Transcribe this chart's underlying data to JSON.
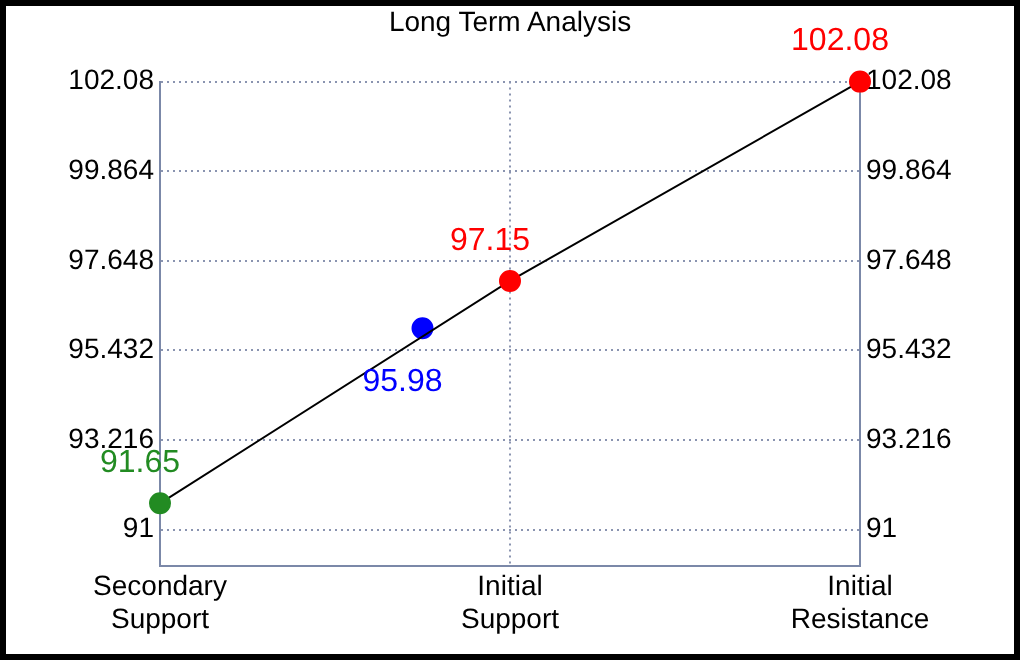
{
  "chart_data": {
    "type": "line",
    "title": "Long Term Analysis",
    "categories": [
      "Secondary Support",
      null,
      null,
      null,
      "Initial Support",
      null,
      null,
      null,
      "Initial Resistance"
    ],
    "ylim": [
      90.1,
      102.08
    ],
    "yticks": [
      91,
      93.216,
      95.432,
      97.648,
      99.864,
      102.08
    ],
    "y2lim": [
      90.1,
      102.08
    ],
    "y2ticks": [
      91,
      93.216,
      95.432,
      97.648,
      99.864,
      102.08
    ],
    "grid": true,
    "legend": false,
    "marker": "circle",
    "line_style": "solid",
    "data_labels": true,
    "series": [
      {
        "color": "#000000",
        "colors": [
          "#228b22",
          null,
          null,
          null,
          "#ff0000",
          null,
          null,
          null,
          "#ff0000"
        ],
        "values": [
          91.65,
          null,
          null,
          null,
          97.15,
          null,
          null,
          null,
          102.08
        ]
      },
      {
        "type": "scatter",
        "color": "#0000ff",
        "values": [
          null,
          null,
          null,
          95.98,
          null,
          null,
          null,
          null,
          null
        ]
      }
    ]
  }
}
